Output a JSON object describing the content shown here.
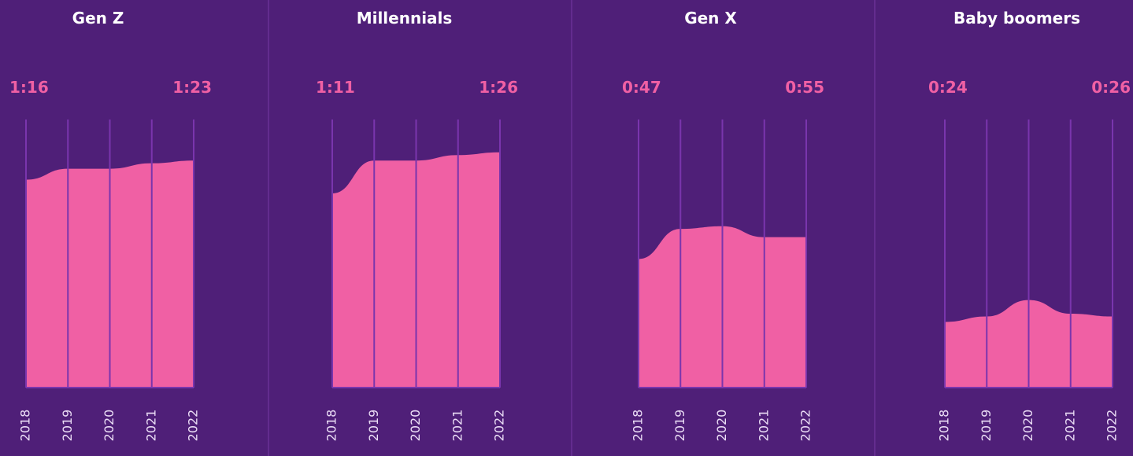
{
  "chart_data": [
    {
      "type": "area",
      "title": "Gen Z",
      "categories": [
        "2018",
        "2019",
        "2020",
        "2021",
        "2022"
      ],
      "values": [
        76,
        80,
        80,
        82,
        83
      ],
      "value_labels": [
        "1:16",
        null,
        null,
        null,
        "1:23"
      ],
      "color": "#f060a4",
      "ylim": [
        0,
        98
      ]
    },
    {
      "type": "area",
      "title": "Millennials",
      "categories": [
        "2018",
        "2019",
        "2020",
        "2021",
        "2022"
      ],
      "values": [
        71,
        83,
        83,
        85,
        86
      ],
      "value_labels": [
        "1:11",
        null,
        null,
        null,
        "1:26"
      ],
      "color": "#f060a4",
      "ylim": [
        0,
        98
      ]
    },
    {
      "type": "area",
      "title": "Gen X",
      "categories": [
        "2018",
        "2019",
        "2020",
        "2021",
        "2022"
      ],
      "values": [
        47,
        58,
        59,
        55,
        55
      ],
      "value_labels": [
        "0:47",
        null,
        null,
        null,
        "0:55"
      ],
      "color": "#f060a4",
      "ylim": [
        0,
        98
      ]
    },
    {
      "type": "area",
      "title": "Baby boomers",
      "categories": [
        "2018",
        "2019",
        "2020",
        "2021",
        "2022"
      ],
      "values": [
        24,
        26,
        32,
        27,
        26
      ],
      "value_labels": [
        "0:24",
        null,
        null,
        null,
        "0:26"
      ],
      "color": "#f060a4",
      "ylim": [
        0,
        98
      ]
    }
  ]
}
